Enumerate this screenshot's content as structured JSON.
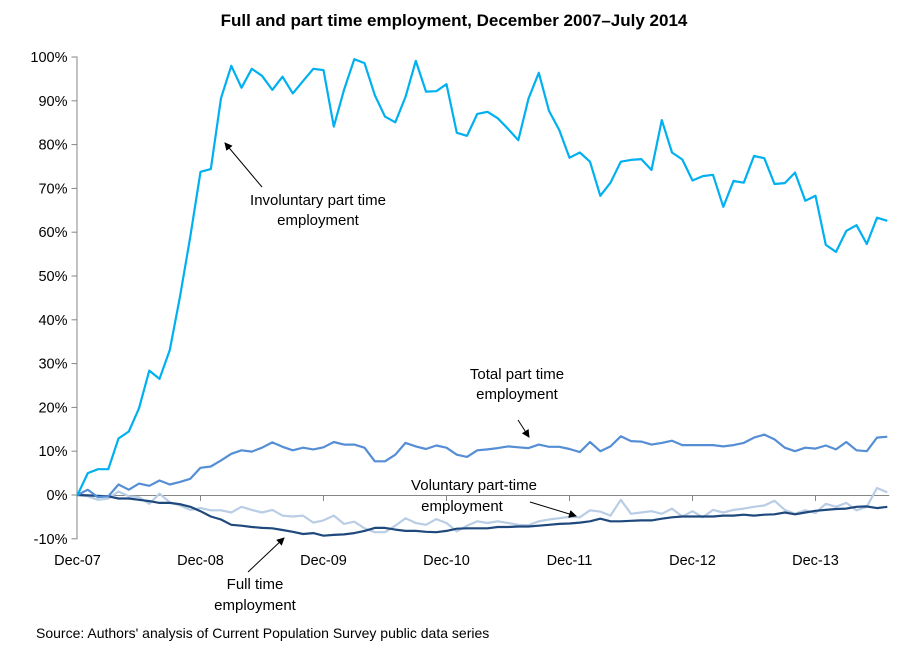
{
  "chart_data": {
    "type": "line",
    "title": "Full and part time employment, December 2007–July 2014",
    "source": "Source: Authors' analysis of Current Population Survey public data series",
    "ylim": [
      -10,
      100
    ],
    "y_ticks": [
      "-10%",
      "0%",
      "10%",
      "20%",
      "30%",
      "40%",
      "50%",
      "60%",
      "70%",
      "80%",
      "90%",
      "100%"
    ],
    "x_tick_labels": [
      "Dec-07",
      "Dec-08",
      "Dec-09",
      "Dec-10",
      "Dec-11",
      "Dec-12",
      "Dec-13"
    ],
    "grid": false,
    "legend": "none (inline annotations)",
    "series": [
      {
        "key": "involuntary",
        "color": "#00B0F0",
        "values": [
          0,
          5.0,
          5.9,
          5.9,
          12.9,
          14.5,
          19.8,
          28.4,
          26.5,
          33.1,
          45.3,
          59.0,
          73.8,
          74.4,
          90.6,
          98.0,
          93.0,
          97.3,
          95.7,
          92.5,
          95.5,
          91.7,
          94.5,
          97.3,
          97.0,
          84.1,
          92.5,
          99.5,
          98.6,
          91.3,
          86.4,
          85.1,
          90.9,
          99.1,
          92.1,
          92.2,
          93.8,
          82.7,
          82.0,
          87.0,
          87.5,
          86.0,
          83.6,
          81.0,
          90.5,
          96.4,
          87.7,
          83.3,
          77.0,
          78.2,
          76.1,
          68.3,
          71.3,
          76.1,
          76.5,
          76.7,
          74.2,
          85.6,
          78.2,
          76.6,
          71.8,
          72.8,
          73.1,
          65.8,
          71.7,
          71.3,
          77.4,
          76.9,
          71.0,
          71.2,
          73.6,
          67.2,
          68.3,
          57.1,
          55.5,
          60.3,
          61.6,
          57.3,
          63.3,
          62.6
        ]
      },
      {
        "key": "total_part_time",
        "color": "#558ED5",
        "values": [
          0,
          1.2,
          -0.5,
          -0.3,
          2.4,
          1.2,
          2.6,
          2.1,
          3.3,
          2.4,
          3.0,
          3.7,
          6.2,
          6.5,
          7.9,
          9.4,
          10.2,
          9.9,
          10.8,
          12.0,
          11.0,
          10.2,
          10.8,
          10.4,
          10.9,
          12.1,
          11.5,
          11.5,
          10.8,
          7.7,
          7.7,
          9.2,
          11.9,
          11.1,
          10.5,
          11.3,
          10.8,
          9.2,
          8.7,
          10.2,
          10.4,
          10.7,
          11.1,
          10.9,
          10.7,
          11.5,
          11.0,
          11.0,
          10.5,
          9.8,
          12.1,
          10.0,
          11.1,
          13.4,
          12.3,
          12.2,
          11.5,
          11.9,
          12.4,
          11.4,
          11.4,
          11.4,
          11.4,
          11.1,
          11.4,
          11.9,
          13.1,
          13.8,
          12.7,
          10.8,
          10.0,
          10.8,
          10.6,
          11.3,
          10.4,
          12.1,
          10.2,
          10.0,
          13.1,
          13.3
        ]
      },
      {
        "key": "voluntary",
        "color": "#B9CDE5",
        "values": [
          0,
          -0.3,
          -1.1,
          -0.8,
          0.8,
          -0.3,
          -0.5,
          -2.0,
          0.3,
          -1.7,
          -2.4,
          -3.4,
          -3.0,
          -3.5,
          -3.5,
          -4.0,
          -2.7,
          -3.4,
          -4.0,
          -3.4,
          -4.7,
          -4.9,
          -4.7,
          -6.3,
          -5.8,
          -4.7,
          -6.6,
          -6.1,
          -7.6,
          -8.5,
          -8.5,
          -7.0,
          -5.3,
          -6.4,
          -6.8,
          -5.5,
          -6.4,
          -8.3,
          -7.0,
          -6.0,
          -6.4,
          -6.0,
          -6.4,
          -6.8,
          -6.9,
          -6.0,
          -5.6,
          -5.3,
          -5.0,
          -5.1,
          -3.5,
          -3.8,
          -4.7,
          -1.1,
          -4.3,
          -4.0,
          -3.7,
          -4.3,
          -3.1,
          -4.9,
          -3.7,
          -5.1,
          -3.4,
          -4.0,
          -3.4,
          -3.1,
          -2.7,
          -2.4,
          -1.3,
          -3.4,
          -4.3,
          -3.5,
          -4.1,
          -2.0,
          -2.7,
          -1.8,
          -3.5,
          -2.7,
          1.6,
          0.6
        ]
      },
      {
        "key": "full_time",
        "color": "#1F497D",
        "values": [
          0,
          -0.1,
          -0.2,
          -0.3,
          -0.8,
          -0.8,
          -1.1,
          -1.4,
          -1.8,
          -1.8,
          -2.1,
          -2.7,
          -3.7,
          -4.9,
          -5.6,
          -6.8,
          -7.0,
          -7.3,
          -7.5,
          -7.6,
          -8.0,
          -8.4,
          -8.9,
          -8.7,
          -9.3,
          -9.1,
          -9.0,
          -8.7,
          -8.2,
          -7.5,
          -7.5,
          -7.9,
          -8.2,
          -8.2,
          -8.4,
          -8.5,
          -8.2,
          -7.7,
          -7.6,
          -7.6,
          -7.6,
          -7.3,
          -7.3,
          -7.2,
          -7.2,
          -7.0,
          -6.8,
          -6.6,
          -6.5,
          -6.3,
          -6.0,
          -5.4,
          -6.0,
          -6.0,
          -5.9,
          -5.8,
          -5.8,
          -5.4,
          -5.1,
          -4.9,
          -4.9,
          -4.9,
          -4.9,
          -4.7,
          -4.7,
          -4.5,
          -4.7,
          -4.5,
          -4.4,
          -4.0,
          -4.4,
          -4.0,
          -3.6,
          -3.4,
          -3.2,
          -3.1,
          -2.7,
          -2.6,
          -3.0,
          -2.7
        ]
      }
    ],
    "annotations": {
      "involuntary": [
        "Involuntary part time",
        "employment"
      ],
      "total_part_time": [
        "Total part time",
        "employment"
      ],
      "voluntary": [
        "Voluntary part-time",
        "employment"
      ],
      "full_time": [
        "Full time",
        "employment"
      ]
    }
  }
}
